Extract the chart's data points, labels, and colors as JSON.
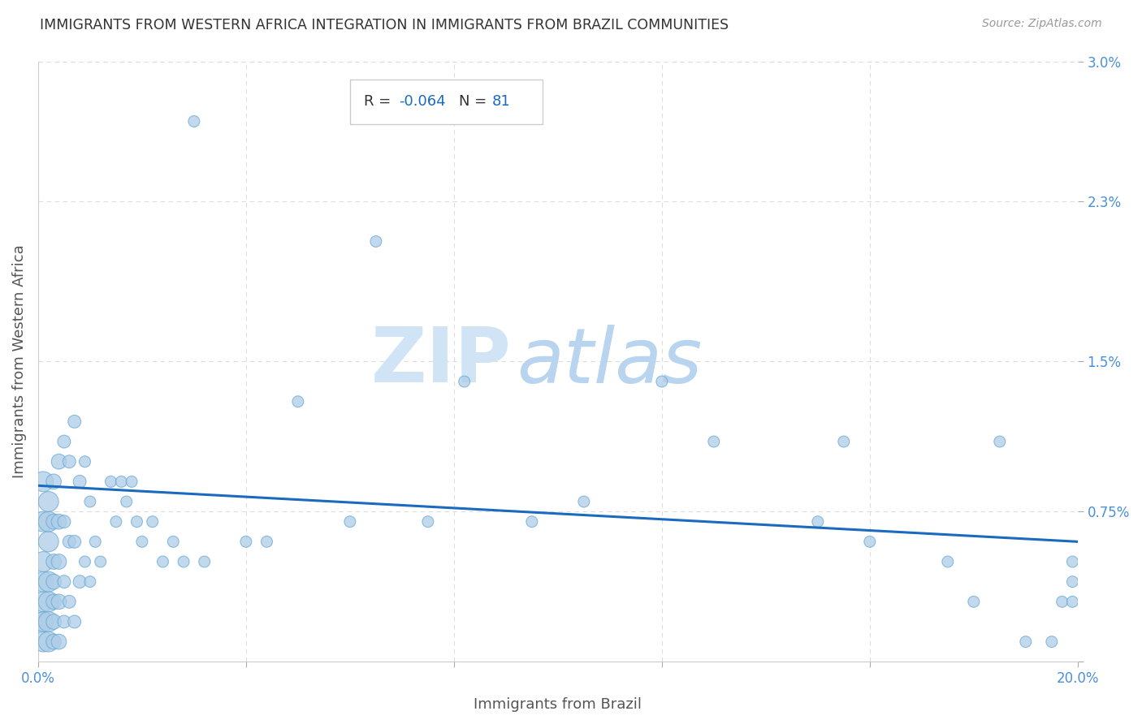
{
  "title": "IMMIGRANTS FROM WESTERN AFRICA INTEGRATION IN IMMIGRANTS FROM BRAZIL COMMUNITIES",
  "source": "Source: ZipAtlas.com",
  "xlabel": "Immigrants from Brazil",
  "ylabel": "Immigrants from Western Africa",
  "R": -0.064,
  "N": 81,
  "xlim": [
    0.0,
    0.2
  ],
  "ylim": [
    0.0,
    0.03
  ],
  "xtick_vals": [
    0.0,
    0.04,
    0.08,
    0.12,
    0.16,
    0.2
  ],
  "xtick_labels": [
    "0.0%",
    "",
    "",
    "",
    "",
    "20.0%"
  ],
  "ytick_vals": [
    0.0,
    0.0075,
    0.015,
    0.023,
    0.03
  ],
  "ytick_labels": [
    "",
    "0.75%",
    "1.5%",
    "2.3%",
    "3.0%"
  ],
  "scatter_color": "#aecde8",
  "scatter_edge_color": "#6aaad4",
  "line_color": "#1a6bbf",
  "watermark_zip_color": "#d0e4f5",
  "watermark_atlas_color": "#b8d4ee",
  "title_color": "#333333",
  "axis_tick_color": "#4a90d9",
  "grid_color": "#dddddd",
  "background_color": "#ffffff",
  "line_y_start": 0.0088,
  "line_y_end": 0.006,
  "points_x": [
    0.001,
    0.001,
    0.001,
    0.001,
    0.001,
    0.001,
    0.001,
    0.001,
    0.002,
    0.002,
    0.002,
    0.002,
    0.002,
    0.002,
    0.002,
    0.003,
    0.003,
    0.003,
    0.003,
    0.003,
    0.003,
    0.003,
    0.004,
    0.004,
    0.004,
    0.004,
    0.004,
    0.005,
    0.005,
    0.005,
    0.005,
    0.006,
    0.006,
    0.006,
    0.007,
    0.007,
    0.007,
    0.008,
    0.008,
    0.009,
    0.009,
    0.01,
    0.01,
    0.011,
    0.012,
    0.014,
    0.015,
    0.016,
    0.017,
    0.018,
    0.019,
    0.02,
    0.022,
    0.024,
    0.026,
    0.028,
    0.03,
    0.032,
    0.04,
    0.044,
    0.05,
    0.06,
    0.065,
    0.075,
    0.082,
    0.095,
    0.105,
    0.12,
    0.13,
    0.15,
    0.155,
    0.16,
    0.175,
    0.18,
    0.185,
    0.19,
    0.195,
    0.197,
    0.199,
    0.199,
    0.199
  ],
  "points_y": [
    0.001,
    0.002,
    0.002,
    0.003,
    0.004,
    0.005,
    0.007,
    0.009,
    0.001,
    0.002,
    0.003,
    0.004,
    0.006,
    0.007,
    0.008,
    0.001,
    0.002,
    0.003,
    0.004,
    0.005,
    0.007,
    0.009,
    0.001,
    0.003,
    0.005,
    0.007,
    0.01,
    0.002,
    0.004,
    0.007,
    0.011,
    0.003,
    0.006,
    0.01,
    0.002,
    0.006,
    0.012,
    0.004,
    0.009,
    0.005,
    0.01,
    0.004,
    0.008,
    0.006,
    0.005,
    0.009,
    0.007,
    0.009,
    0.008,
    0.009,
    0.007,
    0.006,
    0.007,
    0.005,
    0.006,
    0.005,
    0.027,
    0.005,
    0.006,
    0.006,
    0.013,
    0.007,
    0.021,
    0.007,
    0.014,
    0.007,
    0.008,
    0.014,
    0.011,
    0.007,
    0.011,
    0.006,
    0.005,
    0.003,
    0.011,
    0.001,
    0.001,
    0.003,
    0.003,
    0.004,
    0.005
  ]
}
